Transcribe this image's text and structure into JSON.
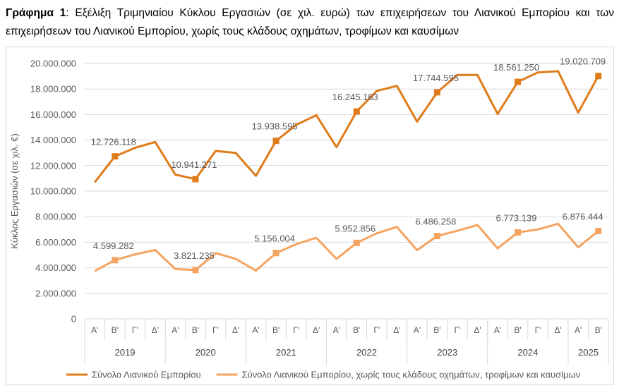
{
  "caption": {
    "bold": "Γράφημα 1",
    "text": ": Εξέλιξη Τριμηνιαίου Κύκλου Εργασιών (σε χιλ. ευρώ) των επιχειρήσεων του Λιανικού Εμπορίου και των επιχειρήσεων του Λιανικού Εμπορίου, χωρίς τους κλάδους οχημάτων, τροφίμων και καυσίμων"
  },
  "chart_data": {
    "type": "line",
    "ylabel": "Κύκλος Εργασιών (σε χιλ. €)",
    "ylim": [
      0,
      20000000
    ],
    "yticks": [
      "0",
      "2.000.000",
      "4.000.000",
      "6.000.000",
      "8.000.000",
      "10.000.000",
      "12.000.000",
      "14.000.000",
      "16.000.000",
      "18.000.000",
      "20.000.000"
    ],
    "categories": [
      "Α'",
      "Β'",
      "Γ'",
      "Δ'",
      "Α'",
      "Β'",
      "Γ'",
      "Δ'",
      "Α'",
      "Β'",
      "Γ'",
      "Δ'",
      "Α'",
      "Β'",
      "Γ'",
      "Δ'",
      "Α'",
      "Β'",
      "Γ'",
      "Δ'",
      "Α'",
      "Β'",
      "Γ'",
      "Δ'",
      "Α'",
      "Β'"
    ],
    "years": [
      {
        "label": "2019",
        "count": 4
      },
      {
        "label": "2020",
        "count": 4
      },
      {
        "label": "2021",
        "count": 4
      },
      {
        "label": "2022",
        "count": 4
      },
      {
        "label": "2023",
        "count": 4
      },
      {
        "label": "2024",
        "count": 4
      },
      {
        "label": "2025",
        "count": 2
      }
    ],
    "grid": true,
    "legend_position": "bottom",
    "series": [
      {
        "name": "Σύνολο Λιανικού Εμπορίου",
        "color": "#E07B1A",
        "values": [
          10700000,
          12726118,
          13400000,
          13850000,
          11300000,
          10941271,
          13150000,
          13000000,
          11200000,
          13938595,
          15200000,
          15950000,
          13450000,
          16245163,
          17850000,
          18250000,
          15450000,
          17744595,
          19100000,
          19100000,
          16050000,
          18561250,
          19300000,
          19400000,
          16150000,
          19020709
        ],
        "labels": [
          "",
          "12.726.118",
          "",
          "",
          "",
          "10.941.271",
          "",
          "",
          "",
          "13.938.595",
          "",
          "",
          "",
          "16.245.163",
          "",
          "",
          "",
          "17.744.595",
          "",
          "",
          "",
          "18.561.250",
          "",
          "",
          "",
          "19.020.709"
        ]
      },
      {
        "name": "Σύνολο Λιανικού Εμπορίου, χωρίς τους κλάδους οχημάτων, τροφίμων και καυσίμων",
        "color": "#F4A460",
        "values": [
          3750000,
          4599282,
          5050000,
          5400000,
          3900000,
          3821235,
          5150000,
          4700000,
          3780000,
          5156004,
          5850000,
          6350000,
          4700000,
          5952856,
          6700000,
          7200000,
          5380000,
          6486258,
          6900000,
          7350000,
          5520000,
          6773139,
          7000000,
          7450000,
          5600000,
          6876444
        ],
        "labels": [
          "",
          "4.599.282",
          "",
          "",
          "",
          "3.821.235",
          "",
          "",
          "",
          "5.156.004",
          "",
          "",
          "",
          "5.952.856",
          "",
          "",
          "",
          "6.486.258",
          "",
          "",
          "",
          "6.773.139",
          "",
          "",
          "",
          "6.876.444"
        ]
      }
    ]
  }
}
